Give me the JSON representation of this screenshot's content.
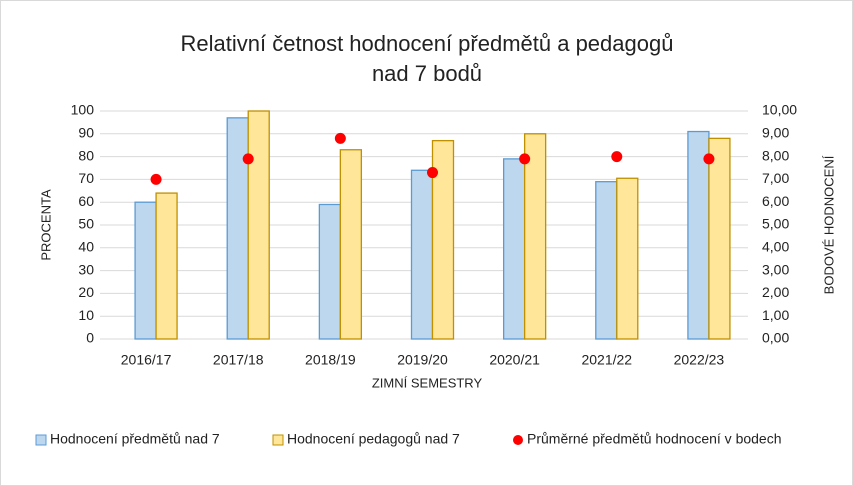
{
  "chart_data": {
    "type": "bar",
    "title": [
      "Relativní četnost hodnocení předmětů a pedagogů",
      "nad 7 bodů"
    ],
    "x_label": "ZIMNÍ SEMESTRY",
    "y_label": "PROCENTA",
    "y2_label": "BODOVÉ HODNOCENÍ",
    "categories": [
      "2016/17",
      "2017/18",
      "2018/19",
      "2019/20",
      "2020/21",
      "2021/22",
      "2022/23"
    ],
    "series": [
      {
        "name": "Hodnocení předmětů nad 7",
        "type": "bar",
        "color": "#bdd7ee",
        "edge": "#5b9bd5",
        "values": [
          60,
          97,
          59,
          74,
          79,
          69,
          91
        ]
      },
      {
        "name": "Hodnocení pedagogů nad 7",
        "type": "bar",
        "color": "#ffe699",
        "edge": "#bf9000",
        "values": [
          64,
          100,
          83,
          87,
          90,
          70.5,
          88
        ]
      },
      {
        "name": "Průměrné předmětů hodnocení v bodech",
        "type": "scatter",
        "axis": "y2",
        "color": "#ff0000",
        "values": [
          7.0,
          7.9,
          8.8,
          7.3,
          7.9,
          8.0,
          7.9
        ]
      }
    ],
    "ylim": [
      0,
      100
    ],
    "yticks": [
      0,
      10,
      20,
      30,
      40,
      50,
      60,
      70,
      80,
      90,
      100
    ],
    "y2lim": [
      0,
      10
    ],
    "y2ticks": [
      {
        "value": 0,
        "label": "0,00"
      },
      {
        "value": 1,
        "label": "1,00"
      },
      {
        "value": 2,
        "label": "2,00"
      },
      {
        "value": 3,
        "label": "3,00"
      },
      {
        "value": 4,
        "label": "4,00"
      },
      {
        "value": 5,
        "label": "5,00"
      },
      {
        "value": 6,
        "label": "6,00"
      },
      {
        "value": 7,
        "label": "7,00"
      },
      {
        "value": 8,
        "label": "8,00"
      },
      {
        "value": 9,
        "label": "9,00"
      },
      {
        "value": 10,
        "label": "10,00"
      }
    ],
    "legend": "bottom"
  }
}
